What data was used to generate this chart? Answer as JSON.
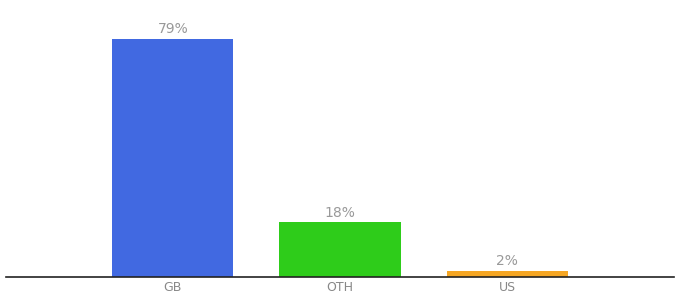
{
  "categories": [
    "GB",
    "OTH",
    "US"
  ],
  "values": [
    79,
    18,
    2
  ],
  "bar_colors": [
    "#4169e1",
    "#2ecc1a",
    "#f5a623"
  ],
  "labels": [
    "79%",
    "18%",
    "2%"
  ],
  "background_color": "#ffffff",
  "ylim": [
    0,
    90
  ],
  "bar_width": 0.55,
  "label_fontsize": 10,
  "tick_fontsize": 9,
  "label_color": "#999999",
  "tick_color": "#888888"
}
